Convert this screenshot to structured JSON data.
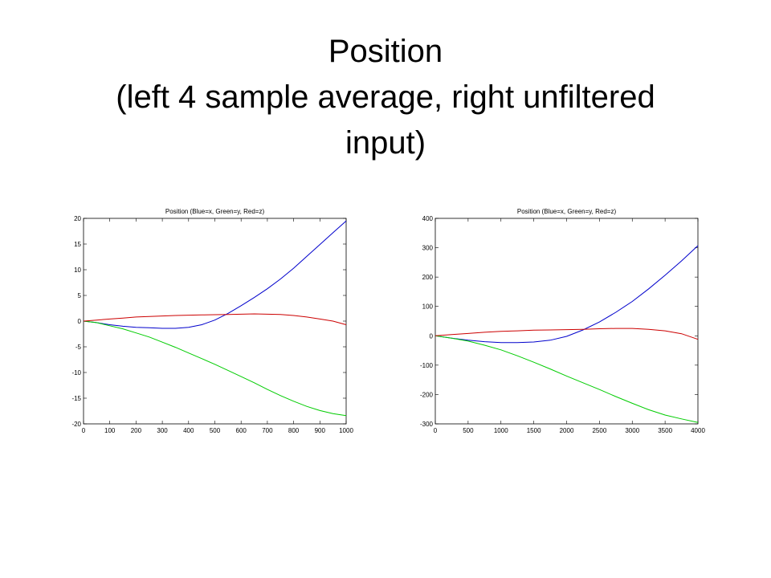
{
  "slide": {
    "title_line1": "Position",
    "title_line2": "(left 4 sample average, right unfiltered",
    "title_line3": "input)"
  },
  "chart_data": [
    {
      "type": "line",
      "title": "Position (Blue=x, Green=y, Red=z)",
      "xlabel": "",
      "ylabel": "",
      "xlim": [
        0,
        1000
      ],
      "ylim": [
        -20,
        20
      ],
      "xticks": [
        0,
        100,
        200,
        300,
        400,
        500,
        600,
        700,
        800,
        900,
        1000
      ],
      "yticks": [
        -20,
        -15,
        -10,
        -5,
        0,
        5,
        10,
        15,
        20
      ],
      "grid": false,
      "series": [
        {
          "color": "#0000cc",
          "x": [
            0,
            50,
            100,
            150,
            200,
            250,
            300,
            350,
            400,
            450,
            500,
            550,
            600,
            650,
            700,
            750,
            800,
            850,
            900,
            950,
            1000
          ],
          "y": [
            0,
            -0.3,
            -0.7,
            -1.0,
            -1.2,
            -1.3,
            -1.4,
            -1.4,
            -1.2,
            -0.7,
            0.2,
            1.5,
            3.0,
            4.6,
            6.3,
            8.2,
            10.3,
            12.6,
            14.9,
            17.2,
            19.5
          ]
        },
        {
          "color": "#00cc00",
          "x": [
            0,
            50,
            100,
            150,
            200,
            250,
            300,
            350,
            400,
            450,
            500,
            550,
            600,
            650,
            700,
            750,
            800,
            850,
            900,
            950,
            1000
          ],
          "y": [
            0,
            -0.3,
            -0.9,
            -1.5,
            -2.3,
            -3.1,
            -4.1,
            -5.1,
            -6.2,
            -7.3,
            -8.4,
            -9.6,
            -10.8,
            -12.0,
            -13.3,
            -14.5,
            -15.6,
            -16.6,
            -17.4,
            -18.0,
            -18.4
          ]
        },
        {
          "color": "#cc0000",
          "x": [
            0,
            50,
            100,
            150,
            200,
            250,
            300,
            350,
            400,
            450,
            500,
            550,
            600,
            650,
            700,
            750,
            800,
            850,
            900,
            950,
            1000
          ],
          "y": [
            0,
            0.2,
            0.4,
            0.6,
            0.8,
            0.9,
            1.0,
            1.1,
            1.15,
            1.2,
            1.25,
            1.3,
            1.35,
            1.4,
            1.35,
            1.3,
            1.1,
            0.8,
            0.4,
            0.0,
            -0.7
          ]
        }
      ]
    },
    {
      "type": "line",
      "title": "Position (Blue=x, Green=y, Red=z)",
      "xlabel": "",
      "ylabel": "",
      "xlim": [
        0,
        4000
      ],
      "ylim": [
        -300,
        400
      ],
      "xticks": [
        0,
        500,
        1000,
        1500,
        2000,
        2500,
        3000,
        3500,
        4000
      ],
      "yticks": [
        -300,
        -200,
        -100,
        0,
        100,
        200,
        300,
        400
      ],
      "grid": false,
      "series": [
        {
          "color": "#0000cc",
          "x": [
            0,
            250,
            500,
            750,
            1000,
            1250,
            1500,
            1750,
            2000,
            2250,
            2500,
            2750,
            3000,
            3250,
            3500,
            3750,
            4000
          ],
          "y": [
            0,
            -8,
            -15,
            -20,
            -23,
            -23,
            -21,
            -15,
            -2,
            20,
            47,
            80,
            117,
            160,
            206,
            255,
            307
          ]
        },
        {
          "color": "#00cc00",
          "x": [
            0,
            250,
            500,
            750,
            1000,
            1250,
            1500,
            1750,
            2000,
            2250,
            2500,
            2750,
            3000,
            3250,
            3500,
            3750,
            4000
          ],
          "y": [
            0,
            -8,
            -18,
            -32,
            -48,
            -68,
            -90,
            -113,
            -137,
            -160,
            -183,
            -207,
            -230,
            -252,
            -270,
            -283,
            -295
          ]
        },
        {
          "color": "#cc0000",
          "x": [
            0,
            250,
            500,
            750,
            1000,
            1250,
            1500,
            1750,
            2000,
            2250,
            2500,
            2750,
            3000,
            3250,
            3500,
            3750,
            4000
          ],
          "y": [
            0,
            4,
            8,
            12,
            15,
            17,
            19,
            20,
            21,
            22,
            24,
            25,
            25,
            22,
            17,
            7,
            -12
          ]
        }
      ]
    }
  ]
}
